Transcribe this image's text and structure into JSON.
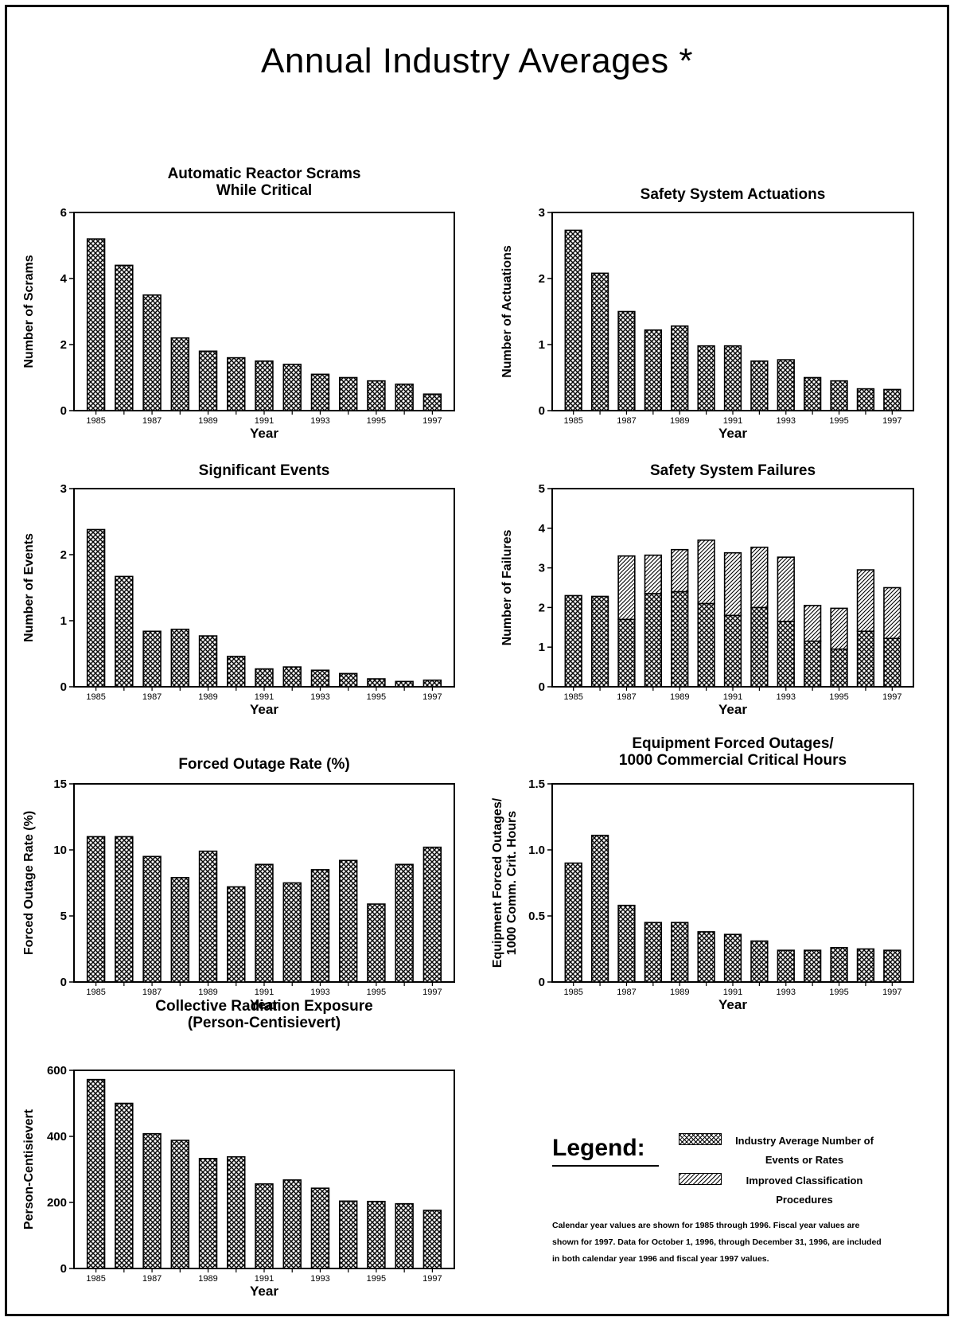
{
  "page_title": "Annual Industry Averages *",
  "legend": {
    "title": "Legend:",
    "items": [
      {
        "label": "Industry Average Number of Events or Rates",
        "pattern": "crosshatch"
      },
      {
        "label": "Improved Classification Procedures",
        "pattern": "diagonal"
      }
    ],
    "note": "Calendar year values are shown for 1985 through 1996. Fiscal year values are shown for 1997. Data for October 1, 1996, through December 31, 1996, are included in both calendar year 1996 and fiscal year 1997 values."
  },
  "chart_data": [
    {
      "type": "bar",
      "title": [
        "Automatic Reactor Scrams",
        "While Critical"
      ],
      "xlabel": "Year",
      "ylabel": [
        "Number of Scrams"
      ],
      "x": [
        1985,
        1986,
        1987,
        1988,
        1989,
        1990,
        1991,
        1992,
        1993,
        1994,
        1995,
        1996,
        1997
      ],
      "xtick_labels": [
        "1985",
        "1987",
        "1989",
        "1991",
        "1993",
        "1995",
        "1997"
      ],
      "ylim": [
        0,
        6
      ],
      "yticks": [
        "0",
        "2",
        "4",
        "6"
      ],
      "series": [
        {
          "values": [
            5.2,
            4.4,
            3.5,
            2.2,
            1.8,
            1.6,
            1.5,
            1.4,
            1.1,
            1.0,
            0.9,
            0.8,
            0.5
          ]
        }
      ]
    },
    {
      "type": "bar",
      "title": [
        "Safety System Actuations"
      ],
      "xlabel": "Year",
      "ylabel": [
        "Number of Actuations"
      ],
      "x": [
        1985,
        1986,
        1987,
        1988,
        1989,
        1990,
        1991,
        1992,
        1993,
        1994,
        1995,
        1996,
        1997
      ],
      "xtick_labels": [
        "1985",
        "1987",
        "1989",
        "1991",
        "1993",
        "1995",
        "1997"
      ],
      "ylim": [
        0,
        3
      ],
      "yticks": [
        "0",
        "1",
        "2",
        "3"
      ],
      "series": [
        {
          "values": [
            2.73,
            2.08,
            1.5,
            1.22,
            1.28,
            0.98,
            0.98,
            0.75,
            0.77,
            0.5,
            0.45,
            0.33,
            0.32
          ]
        }
      ]
    },
    {
      "type": "bar",
      "title": [
        "Significant Events"
      ],
      "xlabel": "Year",
      "ylabel": [
        "Number of Events"
      ],
      "x": [
        1985,
        1986,
        1987,
        1988,
        1989,
        1990,
        1991,
        1992,
        1993,
        1994,
        1995,
        1996,
        1997
      ],
      "xtick_labels": [
        "1985",
        "1987",
        "1989",
        "1991",
        "1993",
        "1995",
        "1997"
      ],
      "ylim": [
        0,
        3
      ],
      "yticks": [
        "0",
        "1",
        "2",
        "3"
      ],
      "series": [
        {
          "values": [
            2.38,
            1.67,
            0.84,
            0.87,
            0.77,
            0.46,
            0.27,
            0.3,
            0.25,
            0.2,
            0.12,
            0.08,
            0.1
          ]
        }
      ]
    },
    {
      "type": "bar",
      "stacked": true,
      "title": [
        "Safety System Failures"
      ],
      "xlabel": "Year",
      "ylabel": [
        "Number of Failures"
      ],
      "x": [
        1985,
        1986,
        1987,
        1988,
        1989,
        1990,
        1991,
        1992,
        1993,
        1994,
        1995,
        1996,
        1997
      ],
      "xtick_labels": [
        "1985",
        "1987",
        "1989",
        "1991",
        "1993",
        "1995",
        "1997"
      ],
      "ylim": [
        0,
        5
      ],
      "yticks": [
        "0",
        "1",
        "2",
        "3",
        "4",
        "5"
      ],
      "series": [
        {
          "name": "Industry Average Number of Events or Rates",
          "values": [
            2.3,
            2.28,
            1.7,
            2.35,
            2.4,
            2.1,
            1.8,
            2.0,
            1.65,
            1.15,
            0.95,
            1.4,
            1.22
          ]
        },
        {
          "name": "Improved Classification Procedures",
          "values": [
            0,
            0,
            1.6,
            0.97,
            1.06,
            1.6,
            1.58,
            1.52,
            1.62,
            0.9,
            1.03,
            1.55,
            1.28
          ]
        }
      ]
    },
    {
      "type": "bar",
      "title": [
        "Forced Outage Rate (%)"
      ],
      "xlabel": "Year",
      "ylabel": [
        "Forced Outage Rate (%)"
      ],
      "x": [
        1985,
        1986,
        1987,
        1988,
        1989,
        1990,
        1991,
        1992,
        1993,
        1994,
        1995,
        1996,
        1997
      ],
      "xtick_labels": [
        "1985",
        "1987",
        "1989",
        "1991",
        "1993",
        "1995",
        "1997"
      ],
      "ylim": [
        0,
        15
      ],
      "yticks": [
        "0",
        "5",
        "10",
        "15"
      ],
      "series": [
        {
          "values": [
            11.0,
            11.0,
            9.5,
            7.9,
            9.9,
            7.2,
            8.9,
            7.5,
            8.5,
            9.2,
            5.9,
            8.9,
            10.2
          ]
        }
      ]
    },
    {
      "type": "bar",
      "title": [
        "Equipment Forced Outages/",
        "1000 Commercial Critical Hours"
      ],
      "xlabel": "Year",
      "ylabel": [
        "Equipment Forced Outages/",
        "1000 Comm. Crit. Hours"
      ],
      "x": [
        1985,
        1986,
        1987,
        1988,
        1989,
        1990,
        1991,
        1992,
        1993,
        1994,
        1995,
        1996,
        1997
      ],
      "xtick_labels": [
        "1985",
        "1987",
        "1989",
        "1991",
        "1993",
        "1995",
        "1997"
      ],
      "ylim": [
        0,
        1.5
      ],
      "yticks": [
        "0",
        "0.5",
        "1.0",
        "1.5"
      ],
      "series": [
        {
          "values": [
            0.9,
            1.11,
            0.58,
            0.45,
            0.45,
            0.38,
            0.36,
            0.31,
            0.24,
            0.24,
            0.26,
            0.25,
            0.24
          ]
        }
      ]
    },
    {
      "type": "bar",
      "title": [
        "Collective Radiation Exposure",
        "(Person-Centisievert)"
      ],
      "xlabel": "Year",
      "ylabel": [
        "Person-Centisievert"
      ],
      "x": [
        1985,
        1986,
        1987,
        1988,
        1989,
        1990,
        1991,
        1992,
        1993,
        1994,
        1995,
        1996,
        1997
      ],
      "xtick_labels": [
        "1985",
        "1987",
        "1989",
        "1991",
        "1993",
        "1995",
        "1997"
      ],
      "ylim": [
        0,
        600
      ],
      "yticks": [
        "0",
        "200",
        "400",
        "600"
      ],
      "series": [
        {
          "values": [
            572,
            500,
            408,
            388,
            333,
            338,
            256,
            268,
            243,
            204,
            203,
            196,
            176
          ]
        }
      ]
    }
  ]
}
